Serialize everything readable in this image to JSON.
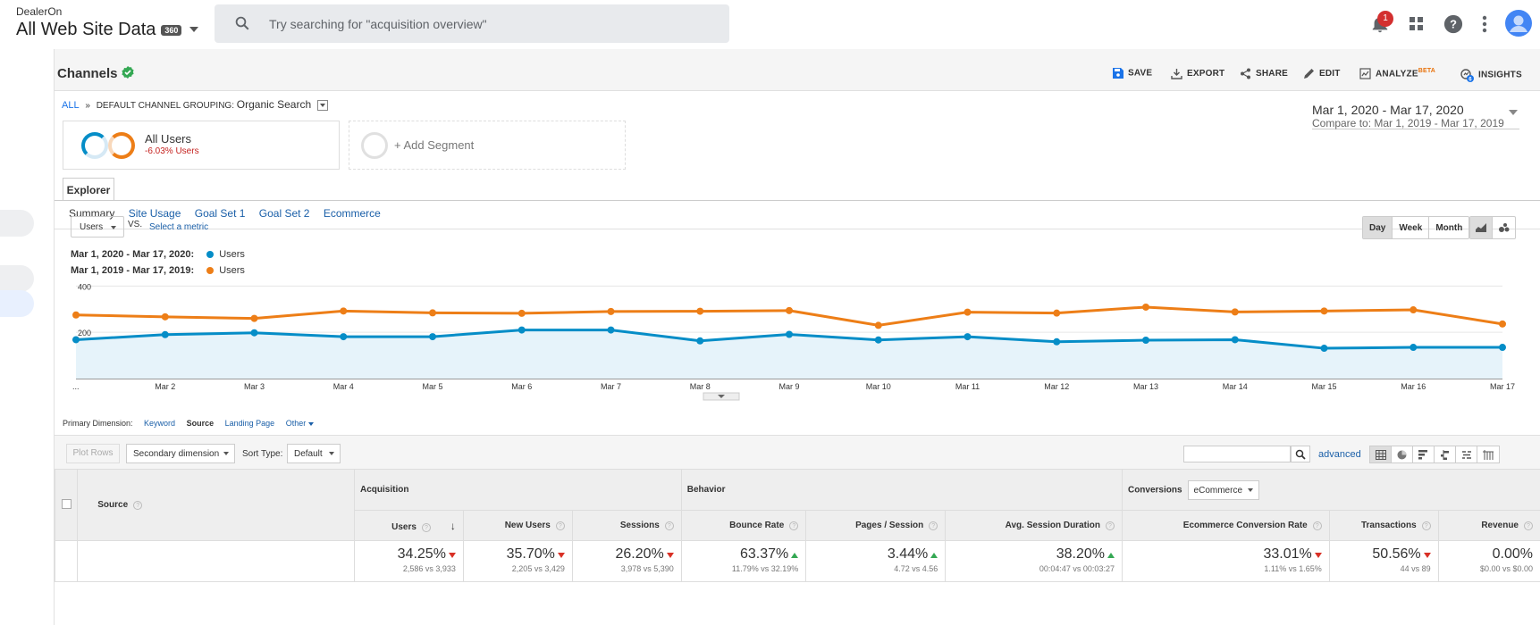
{
  "account": {
    "company": "DealerOn",
    "property": "All Web Site Data",
    "badge": "360"
  },
  "search": {
    "placeholder": "Try searching for \"acquisition overview\""
  },
  "notifications": {
    "count": "1"
  },
  "report": {
    "title": "Channels",
    "actions": {
      "save": "SAVE",
      "export": "EXPORT",
      "share": "SHARE",
      "edit": "EDIT",
      "analyze": "ANALYZE",
      "analyze_badge": "BETA",
      "insights": "INSIGHTS",
      "insights_count": "6"
    }
  },
  "breadcrumb": {
    "all": "ALL",
    "sep": "»",
    "grouping_label": "DEFAULT CHANNEL GROUPING:",
    "grouping_value": "Organic Search"
  },
  "date_range": {
    "main": "Mar 1, 2020 - Mar 17, 2020",
    "compare_label": "Compare to:",
    "compare_value": "Mar 1, 2019 - Mar 17, 2019"
  },
  "segments": {
    "active_name": "All Users",
    "active_sub": "-6.03% Users",
    "add_label": "+ Add Segment"
  },
  "explorer": {
    "tab": "Explorer",
    "subtabs": [
      "Summary",
      "Site Usage",
      "Goal Set 1",
      "Goal Set 2",
      "Ecommerce"
    ]
  },
  "chart_controls": {
    "metric": "Users",
    "vs": "VS.",
    "select_metric": "Select a metric",
    "periods": [
      "Day",
      "Week",
      "Month"
    ]
  },
  "chart_legend": [
    {
      "period": "Mar 1, 2020 - Mar 17, 2020:",
      "metric": "Users",
      "color": "#058dc7"
    },
    {
      "period": "Mar 1, 2019 - Mar 17, 2019:",
      "metric": "Users",
      "color": "#ed7e17"
    }
  ],
  "chart_data": {
    "type": "line",
    "x": [
      "...",
      "Mar 2",
      "Mar 3",
      "Mar 4",
      "Mar 5",
      "Mar 6",
      "Mar 7",
      "Mar 8",
      "Mar 9",
      "Mar 10",
      "Mar 11",
      "Mar 12",
      "Mar 13",
      "Mar 14",
      "Mar 15",
      "Mar 16",
      "Mar 17"
    ],
    "series": [
      {
        "name": "Users",
        "period": "Mar 1, 2020 - Mar 17, 2020",
        "color": "#058dc7",
        "area": true,
        "values": [
          168,
          190,
          198,
          181,
          181,
          210,
          210,
          163,
          191,
          167,
          181,
          159,
          166,
          168,
          131,
          135,
          135
        ]
      },
      {
        "name": "Users",
        "period": "Mar 1, 2019 - Mar 17, 2019",
        "color": "#ed7e17",
        "values": [
          275,
          267,
          260,
          292,
          284,
          282,
          290,
          291,
          294,
          230,
          287,
          283,
          309,
          288,
          292,
          297,
          236
        ]
      }
    ],
    "yticks": [
      200,
      400
    ],
    "ylim": [
      0,
      440
    ]
  },
  "primary_dimension": {
    "label": "Primary Dimension:",
    "options": [
      "Keyword",
      "Source",
      "Landing Page",
      "Other"
    ],
    "active": "Source"
  },
  "table_toolbar": {
    "plot_rows": "Plot Rows",
    "secondary_dimension": "Secondary dimension",
    "sort_type_label": "Sort Type:",
    "sort_type_value": "Default",
    "advanced": "advanced"
  },
  "table": {
    "groups": {
      "acquisition": "Acquisition",
      "behavior": "Behavior",
      "conversions": "Conversions",
      "conversions_select": "eCommerce"
    },
    "source_header": "Source",
    "columns": [
      "Users",
      "New Users",
      "Sessions",
      "Bounce Rate",
      "Pages / Session",
      "Avg. Session Duration",
      "Ecommerce Conversion Rate",
      "Transactions",
      "Revenue"
    ],
    "totals": [
      {
        "value": "34.25%",
        "sub": "2,586 vs 3,933",
        "dir": "down"
      },
      {
        "value": "35.70%",
        "sub": "2,205 vs 3,429",
        "dir": "down"
      },
      {
        "value": "26.20%",
        "sub": "3,978 vs 5,390",
        "dir": "down"
      },
      {
        "value": "63.37%",
        "sub": "11.79% vs 32.19%",
        "dir": "up"
      },
      {
        "value": "3.44%",
        "sub": "4.72 vs 4.56",
        "dir": "up"
      },
      {
        "value": "38.20%",
        "sub": "00:04:47 vs 00:03:27",
        "dir": "up"
      },
      {
        "value": "33.01%",
        "sub": "1.11% vs 1.65%",
        "dir": "down"
      },
      {
        "value": "50.56%",
        "sub": "44 vs 89",
        "dir": "down"
      },
      {
        "value": "0.00%",
        "sub": "$0.00 vs $0.00",
        "dir": "none"
      }
    ]
  }
}
